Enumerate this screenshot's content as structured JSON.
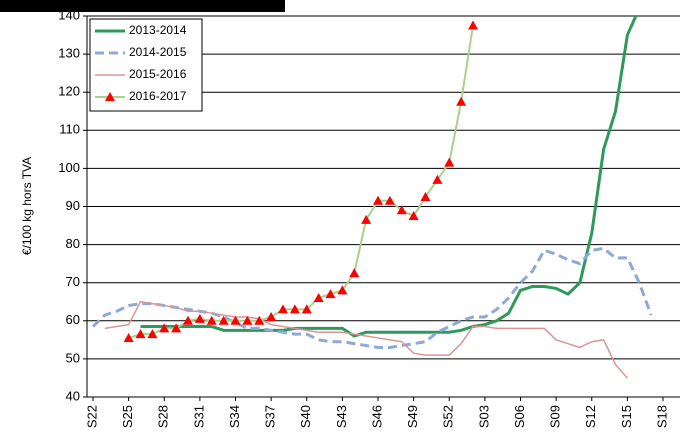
{
  "chart_data": {
    "type": "line",
    "y_label": "€/100 kg hors TVA",
    "categories": [
      "S22",
      null,
      null,
      "S25",
      null,
      null,
      "S28",
      null,
      null,
      "S31",
      null,
      null,
      "S34",
      null,
      null,
      "S37",
      null,
      null,
      "S40",
      null,
      null,
      "S43",
      null,
      null,
      "S46",
      null,
      null,
      "S49",
      null,
      null,
      "S52",
      null,
      null,
      "S03",
      null,
      null,
      "S06",
      null,
      null,
      "S09",
      null,
      null,
      "S12",
      null,
      null,
      "S15",
      null,
      null,
      "S18"
    ],
    "ylim": [
      40,
      140
    ],
    "yticks": [
      40,
      50,
      60,
      70,
      80,
      90,
      100,
      110,
      120,
      130,
      140
    ],
    "grid": true,
    "legend": "top-left",
    "series": [
      {
        "name": "2013-2014",
        "color": "#2e9a5a",
        "width": 3,
        "values": [
          null,
          null,
          null,
          null,
          58.5,
          58.5,
          58.5,
          58.5,
          58.5,
          58.5,
          58.5,
          57.5,
          57.5,
          57.5,
          57.5,
          57.5,
          57.5,
          58,
          58,
          58,
          58,
          58,
          56,
          57,
          57,
          57,
          57,
          57,
          57,
          57,
          57,
          57.5,
          58.5,
          59,
          60,
          62,
          68,
          69,
          69,
          68.5,
          67,
          70,
          83,
          105,
          115,
          135,
          142,
          null,
          null
        ]
      },
      {
        "name": "2014-2015",
        "color": "#8ea9d8",
        "width": 3,
        "dash": true,
        "values": [
          58.5,
          61.5,
          62.5,
          64,
          64.5,
          64.5,
          64,
          63.5,
          63,
          62.5,
          62,
          61,
          59.5,
          58,
          58,
          57.5,
          57,
          56.5,
          56.5,
          55,
          54.5,
          54.5,
          54,
          53.5,
          53,
          53,
          53.5,
          54,
          54.5,
          57,
          58.5,
          60,
          61,
          61,
          63,
          66,
          70,
          73,
          78.5,
          77.5,
          76,
          75,
          78.5,
          79,
          76.5,
          76.5,
          70,
          61.5,
          null
        ]
      },
      {
        "name": "2015-2016",
        "color": "#d99694",
        "width": 1.5,
        "values": [
          null,
          58,
          58.5,
          59,
          65,
          64.5,
          64,
          63.5,
          62.5,
          62.5,
          62,
          61.5,
          61,
          61,
          60.5,
          59,
          58.5,
          58,
          57.5,
          57,
          57,
          57,
          56.5,
          56,
          55.5,
          55,
          54.5,
          51.5,
          51,
          51,
          51,
          54,
          58.5,
          58.5,
          58,
          58,
          58,
          58,
          58,
          55,
          54,
          53,
          54.5,
          55,
          48.5,
          45,
          null,
          null,
          null
        ]
      },
      {
        "name": "2016-2017",
        "color": "#a9d18e",
        "width": 2,
        "marker": "triangle",
        "marker_color": "#ff0000",
        "values": [
          null,
          null,
          null,
          55.5,
          56.5,
          56.5,
          58,
          58,
          60,
          60.5,
          60,
          60,
          60,
          60,
          60,
          61,
          63,
          63,
          63,
          66,
          67,
          68,
          72.5,
          86.5,
          91.5,
          91.5,
          89,
          87.5,
          92.5,
          97,
          101.5,
          117.5,
          137.5,
          null,
          null,
          null,
          null,
          null,
          null,
          null,
          null,
          null,
          null,
          null,
          null,
          null,
          null,
          null,
          null
        ]
      }
    ]
  }
}
